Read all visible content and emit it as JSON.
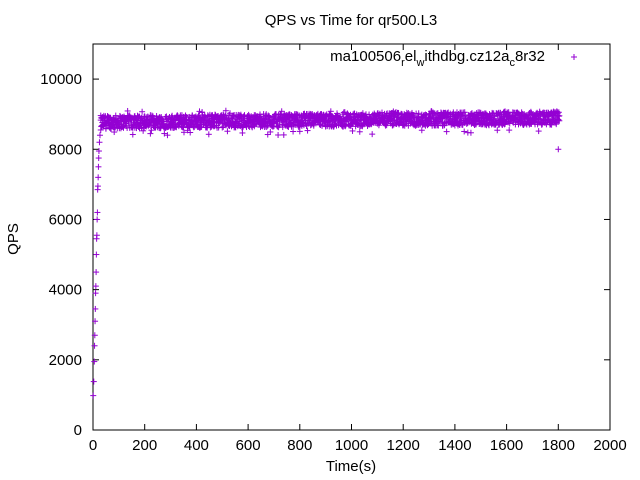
{
  "chart_data": {
    "type": "scatter",
    "title": "QPS vs Time for qr500.L3",
    "xlabel": "Time(s)",
    "ylabel": "QPS",
    "xlim": [
      0,
      2000
    ],
    "ylim": [
      0,
      11000
    ],
    "xticks": [
      0,
      200,
      400,
      600,
      800,
      1000,
      1200,
      1400,
      1600,
      1800,
      2000
    ],
    "yticks": [
      0,
      2000,
      4000,
      6000,
      8000,
      10000
    ],
    "grid": false,
    "legend_position": "top-right",
    "series": [
      {
        "name": "ma100506_rel_withdbg.cz12a_c8r32",
        "marker": "+",
        "color": "#9400d3",
        "points": [
          [
            1,
            980
          ],
          [
            3,
            1380
          ],
          [
            5,
            1950
          ],
          [
            6,
            2400
          ],
          [
            7,
            2700
          ],
          [
            8,
            3100
          ],
          [
            9,
            3450
          ],
          [
            10,
            3900
          ],
          [
            11,
            4100
          ],
          [
            12,
            4500
          ],
          [
            13,
            5000
          ],
          [
            14,
            5450
          ],
          [
            15,
            5550
          ],
          [
            16,
            6000
          ],
          [
            17,
            6200
          ],
          [
            18,
            6850
          ],
          [
            19,
            6950
          ],
          [
            20,
            7200
          ],
          [
            21,
            7500
          ],
          [
            22,
            7750
          ],
          [
            23,
            7950
          ],
          [
            25,
            8200
          ],
          [
            27,
            8400
          ],
          [
            30,
            8550
          ],
          [
            35,
            8650
          ],
          [
            40,
            8700
          ],
          [
            50,
            8600
          ],
          [
            60,
            8750
          ],
          [
            80,
            8800
          ],
          [
            100,
            8700
          ],
          [
            130,
            8800
          ],
          [
            160,
            8750
          ],
          [
            200,
            8780
          ],
          [
            250,
            8720
          ],
          [
            300,
            8800
          ],
          [
            350,
            8700
          ],
          [
            400,
            8780
          ],
          [
            450,
            8820
          ],
          [
            500,
            8740
          ],
          [
            550,
            8800
          ],
          [
            600,
            8780
          ],
          [
            650,
            8820
          ],
          [
            700,
            8750
          ],
          [
            750,
            8800
          ],
          [
            800,
            8830
          ],
          [
            850,
            8780
          ],
          [
            900,
            8820
          ],
          [
            950,
            8800
          ],
          [
            1000,
            8850
          ],
          [
            1050,
            8900
          ],
          [
            1100,
            8820
          ],
          [
            1150,
            8880
          ],
          [
            1200,
            8850
          ],
          [
            1250,
            8900
          ],
          [
            1300,
            8860
          ],
          [
            1350,
            8880
          ],
          [
            1400,
            8840
          ],
          [
            1450,
            8860
          ],
          [
            1500,
            8820
          ],
          [
            1550,
            8800
          ],
          [
            1600,
            8780
          ],
          [
            1650,
            8860
          ],
          [
            1700,
            8800
          ],
          [
            1750,
            8820
          ],
          [
            1790,
            8760
          ],
          [
            1800,
            8000
          ]
        ],
        "band": {
          "x_range": [
            30,
            1805
          ],
          "typical_low": 8580,
          "typical_high": 9020,
          "outlier_low": 8400,
          "outlier_high": 9100
        }
      }
    ]
  }
}
